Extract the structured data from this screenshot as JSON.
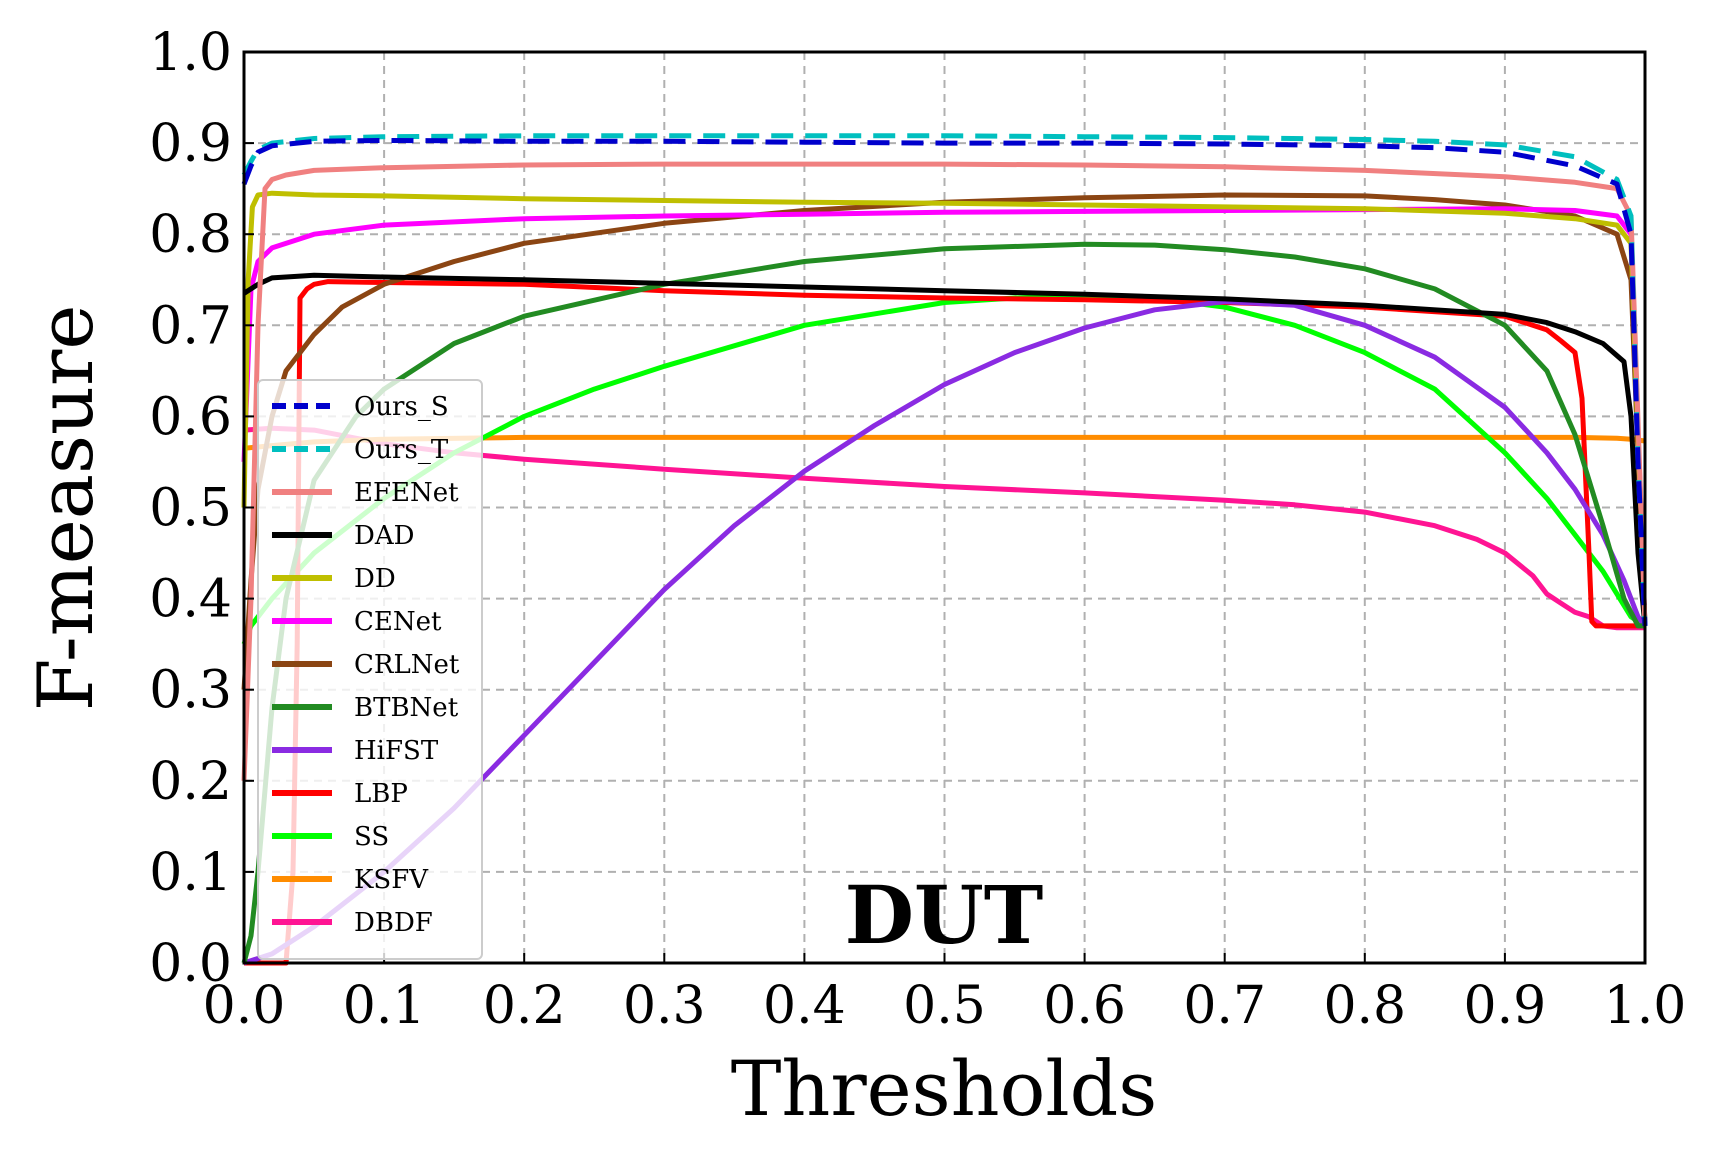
{
  "chart_data": {
    "type": "line",
    "title": "",
    "annotation": "DUT",
    "xlabel": "Thresholds",
    "ylabel": "F-measure",
    "xlim": [
      0.0,
      1.0
    ],
    "ylim": [
      0.0,
      1.0
    ],
    "xticks": [
      "0.0",
      "0.1",
      "0.2",
      "0.3",
      "0.4",
      "0.5",
      "0.6",
      "0.7",
      "0.8",
      "0.9",
      "1.0"
    ],
    "yticks": [
      "0.0",
      "0.1",
      "0.2",
      "0.3",
      "0.4",
      "0.5",
      "0.6",
      "0.7",
      "0.8",
      "0.9",
      "1.0"
    ],
    "grid": true,
    "legend_position": "left",
    "series": [
      {
        "name": "Ours_S",
        "color": "#0000cc",
        "dash": "dashed",
        "x": [
          0.0,
          0.005,
          0.01,
          0.02,
          0.05,
          0.1,
          0.2,
          0.3,
          0.4,
          0.5,
          0.6,
          0.7,
          0.8,
          0.85,
          0.9,
          0.95,
          0.98,
          0.99,
          0.995,
          1.0
        ],
        "y": [
          0.855,
          0.875,
          0.89,
          0.897,
          0.902,
          0.903,
          0.902,
          0.902,
          0.901,
          0.9,
          0.9,
          0.899,
          0.897,
          0.895,
          0.89,
          0.875,
          0.855,
          0.8,
          0.55,
          0.37
        ]
      },
      {
        "name": "Ours_T",
        "color": "#00bfbf",
        "dash": "dashed",
        "x": [
          0.0,
          0.005,
          0.01,
          0.02,
          0.05,
          0.1,
          0.2,
          0.3,
          0.4,
          0.5,
          0.6,
          0.7,
          0.8,
          0.85,
          0.9,
          0.95,
          0.98,
          0.99,
          0.995,
          1.0
        ],
        "y": [
          0.865,
          0.88,
          0.893,
          0.9,
          0.905,
          0.907,
          0.908,
          0.908,
          0.908,
          0.908,
          0.907,
          0.906,
          0.904,
          0.902,
          0.898,
          0.885,
          0.86,
          0.82,
          0.55,
          0.37
        ]
      },
      {
        "name": "EFENet",
        "color": "#f08080",
        "dash": "solid",
        "x": [
          0.0,
          0.005,
          0.01,
          0.015,
          0.02,
          0.03,
          0.05,
          0.1,
          0.2,
          0.3,
          0.4,
          0.5,
          0.6,
          0.7,
          0.8,
          0.9,
          0.95,
          0.98,
          0.99,
          1.0
        ],
        "y": [
          0.2,
          0.4,
          0.7,
          0.85,
          0.86,
          0.865,
          0.87,
          0.873,
          0.876,
          0.877,
          0.877,
          0.877,
          0.876,
          0.874,
          0.87,
          0.863,
          0.857,
          0.85,
          0.82,
          0.37
        ]
      },
      {
        "name": "DAD",
        "color": "#000000",
        "dash": "solid",
        "x": [
          0.0,
          0.01,
          0.02,
          0.05,
          0.1,
          0.2,
          0.3,
          0.4,
          0.5,
          0.6,
          0.7,
          0.8,
          0.9,
          0.93,
          0.95,
          0.97,
          0.985,
          0.99,
          0.995,
          1.0
        ],
        "y": [
          0.735,
          0.745,
          0.752,
          0.755,
          0.753,
          0.75,
          0.746,
          0.742,
          0.738,
          0.734,
          0.729,
          0.722,
          0.712,
          0.703,
          0.693,
          0.68,
          0.66,
          0.6,
          0.45,
          0.37
        ]
      },
      {
        "name": "DD",
        "color": "#bfbf00",
        "dash": "solid",
        "x": [
          0.0,
          0.003,
          0.006,
          0.01,
          0.02,
          0.05,
          0.1,
          0.2,
          0.3,
          0.4,
          0.5,
          0.6,
          0.7,
          0.8,
          0.9,
          0.95,
          0.98,
          0.99,
          1.0
        ],
        "y": [
          0.5,
          0.75,
          0.83,
          0.843,
          0.845,
          0.843,
          0.842,
          0.839,
          0.837,
          0.835,
          0.834,
          0.832,
          0.83,
          0.828,
          0.823,
          0.817,
          0.81,
          0.79,
          0.37
        ]
      },
      {
        "name": "CENet",
        "color": "#ff00ff",
        "dash": "solid",
        "x": [
          0.0,
          0.005,
          0.01,
          0.02,
          0.05,
          0.1,
          0.2,
          0.3,
          0.4,
          0.5,
          0.6,
          0.7,
          0.8,
          0.9,
          0.95,
          0.98,
          0.99,
          1.0
        ],
        "y": [
          0.55,
          0.74,
          0.77,
          0.785,
          0.8,
          0.81,
          0.817,
          0.82,
          0.822,
          0.824,
          0.825,
          0.826,
          0.827,
          0.828,
          0.826,
          0.82,
          0.8,
          0.37
        ]
      },
      {
        "name": "CRLNet",
        "color": "#8b4513",
        "dash": "solid",
        "x": [
          0.0,
          0.005,
          0.01,
          0.02,
          0.03,
          0.05,
          0.07,
          0.1,
          0.15,
          0.2,
          0.3,
          0.4,
          0.5,
          0.6,
          0.7,
          0.8,
          0.85,
          0.9,
          0.95,
          0.98,
          0.99,
          1.0
        ],
        "y": [
          0.3,
          0.42,
          0.52,
          0.6,
          0.65,
          0.69,
          0.72,
          0.745,
          0.77,
          0.79,
          0.812,
          0.826,
          0.835,
          0.84,
          0.843,
          0.842,
          0.838,
          0.832,
          0.82,
          0.8,
          0.75,
          0.37
        ]
      },
      {
        "name": "BTBNet",
        "color": "#228b22",
        "dash": "solid",
        "x": [
          0.0,
          0.005,
          0.01,
          0.02,
          0.03,
          0.05,
          0.08,
          0.1,
          0.15,
          0.2,
          0.3,
          0.4,
          0.5,
          0.6,
          0.65,
          0.7,
          0.75,
          0.8,
          0.85,
          0.9,
          0.93,
          0.95,
          0.97,
          0.985,
          0.995,
          1.0
        ],
        "y": [
          0.0,
          0.03,
          0.1,
          0.28,
          0.4,
          0.53,
          0.6,
          0.63,
          0.68,
          0.71,
          0.745,
          0.77,
          0.784,
          0.789,
          0.788,
          0.783,
          0.775,
          0.762,
          0.74,
          0.7,
          0.65,
          0.58,
          0.48,
          0.4,
          0.37,
          0.37
        ]
      },
      {
        "name": "HiFST",
        "color": "#8a2be2",
        "dash": "solid",
        "x": [
          0.0,
          0.02,
          0.05,
          0.1,
          0.15,
          0.2,
          0.25,
          0.3,
          0.35,
          0.4,
          0.45,
          0.5,
          0.55,
          0.6,
          0.65,
          0.7,
          0.75,
          0.8,
          0.85,
          0.9,
          0.93,
          0.95,
          0.97,
          0.985,
          0.995,
          1.0
        ],
        "y": [
          0.0,
          0.01,
          0.04,
          0.1,
          0.17,
          0.25,
          0.33,
          0.41,
          0.48,
          0.54,
          0.59,
          0.635,
          0.67,
          0.697,
          0.717,
          0.726,
          0.722,
          0.7,
          0.665,
          0.61,
          0.56,
          0.52,
          0.47,
          0.42,
          0.38,
          0.37
        ]
      },
      {
        "name": "LBP",
        "color": "#ff0000",
        "dash": "solid",
        "x": [
          0.0,
          0.02,
          0.03,
          0.035,
          0.038,
          0.04,
          0.045,
          0.05,
          0.06,
          0.1,
          0.2,
          0.3,
          0.4,
          0.5,
          0.6,
          0.7,
          0.8,
          0.9,
          0.93,
          0.94,
          0.95,
          0.955,
          0.96,
          0.962,
          0.965,
          0.97,
          1.0
        ],
        "y": [
          0.0,
          0.0,
          0.0,
          0.1,
          0.35,
          0.73,
          0.74,
          0.745,
          0.748,
          0.747,
          0.745,
          0.738,
          0.733,
          0.73,
          0.728,
          0.725,
          0.72,
          0.71,
          0.695,
          0.683,
          0.67,
          0.62,
          0.45,
          0.375,
          0.37,
          0.37,
          0.37
        ]
      },
      {
        "name": "SS",
        "color": "#00ff00",
        "dash": "solid",
        "x": [
          0.0,
          0.005,
          0.01,
          0.02,
          0.05,
          0.1,
          0.15,
          0.2,
          0.25,
          0.3,
          0.4,
          0.5,
          0.55,
          0.6,
          0.65,
          0.7,
          0.75,
          0.8,
          0.85,
          0.9,
          0.93,
          0.95,
          0.97,
          0.99,
          1.0
        ],
        "y": [
          0.35,
          0.37,
          0.38,
          0.4,
          0.45,
          0.51,
          0.56,
          0.6,
          0.63,
          0.655,
          0.7,
          0.725,
          0.73,
          0.733,
          0.73,
          0.72,
          0.7,
          0.67,
          0.63,
          0.56,
          0.51,
          0.47,
          0.43,
          0.38,
          0.37
        ]
      },
      {
        "name": "KSFV",
        "color": "#ff8c00",
        "dash": "solid",
        "x": [
          0.0,
          0.02,
          0.05,
          0.1,
          0.2,
          0.3,
          0.4,
          0.5,
          0.6,
          0.7,
          0.8,
          0.9,
          0.95,
          0.98,
          0.99,
          1.0
        ],
        "y": [
          0.565,
          0.568,
          0.572,
          0.575,
          0.577,
          0.577,
          0.577,
          0.577,
          0.577,
          0.577,
          0.577,
          0.577,
          0.577,
          0.576,
          0.575,
          0.573
        ]
      },
      {
        "name": "DBDF",
        "color": "#ff1493",
        "dash": "solid",
        "x": [
          0.0,
          0.02,
          0.05,
          0.1,
          0.15,
          0.2,
          0.3,
          0.4,
          0.5,
          0.6,
          0.7,
          0.75,
          0.8,
          0.85,
          0.88,
          0.9,
          0.92,
          0.93,
          0.94,
          0.95,
          0.96,
          0.97,
          0.98,
          1.0
        ],
        "y": [
          0.585,
          0.587,
          0.585,
          0.57,
          0.56,
          0.553,
          0.542,
          0.532,
          0.523,
          0.516,
          0.508,
          0.503,
          0.495,
          0.48,
          0.465,
          0.45,
          0.425,
          0.405,
          0.395,
          0.385,
          0.38,
          0.37,
          0.368,
          0.368
        ]
      }
    ]
  }
}
